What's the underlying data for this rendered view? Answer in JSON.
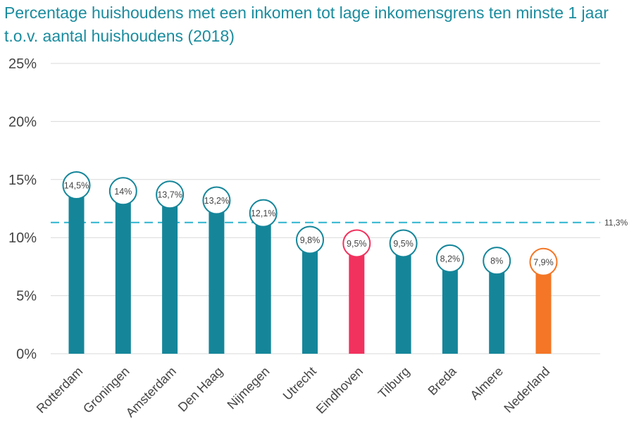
{
  "chart_data": {
    "type": "bar",
    "title": "Percentage huishoudens met een inkomen tot lage inkomensgrens ten minste 1 jaar t.o.v. aantal huishoudens (2018)",
    "categories": [
      "Rotterdam",
      "Groningen",
      "Amsterdam",
      "Den Haag",
      "Nijmegen",
      "Utrecht",
      "Eindhoven",
      "Tilburg",
      "Breda",
      "Almere",
      "Nederland"
    ],
    "values": [
      14.5,
      14,
      13.7,
      13.2,
      12.1,
      9.8,
      9.5,
      9.5,
      8.2,
      8,
      7.9
    ],
    "data_labels": [
      "14,5%",
      "14%",
      "13,7%",
      "13,2%",
      "12,1%",
      "9,8%",
      "9,5%",
      "9,5%",
      "8,2%",
      "8%",
      "7,9%"
    ],
    "colors": [
      "#15869a",
      "#15869a",
      "#15869a",
      "#15869a",
      "#15869a",
      "#15869a",
      "#f2325e",
      "#15869a",
      "#15869a",
      "#15869a",
      "#f47626"
    ],
    "ylim": [
      0,
      25
    ],
    "yticks": [
      0,
      5,
      10,
      15,
      20,
      25
    ],
    "ytick_labels": [
      "0%",
      "5%",
      "10%",
      "15%",
      "20%",
      "25%"
    ],
    "reference_line": {
      "value": 11.3,
      "label": "11,3%",
      "color": "#2bb3cf"
    },
    "xlabel": "",
    "ylabel": "",
    "grid": true
  }
}
